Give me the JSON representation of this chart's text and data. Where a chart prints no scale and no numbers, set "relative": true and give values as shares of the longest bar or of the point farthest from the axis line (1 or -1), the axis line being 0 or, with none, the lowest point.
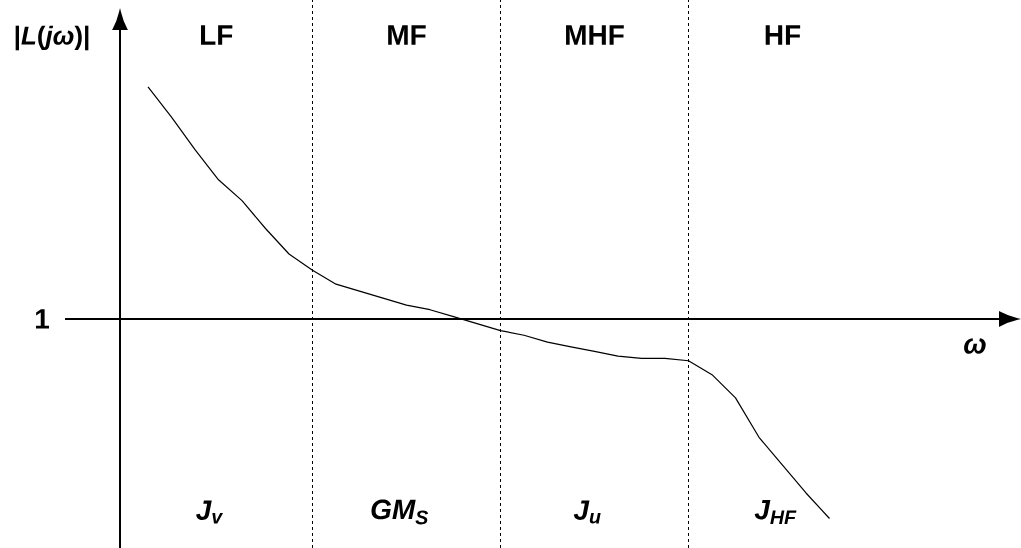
{
  "chart_data": {
    "type": "line",
    "relative": true,
    "ylabel": "|*L*(*jω*)|",
    "xlabel": "ω",
    "categories": [
      null,
      null,
      null,
      null,
      null,
      null,
      null,
      null,
      null,
      null,
      null,
      null,
      null,
      null,
      null,
      null,
      null,
      null,
      null,
      null,
      null,
      null,
      null,
      null,
      null,
      null,
      null,
      null,
      null,
      null
    ],
    "series": [
      {
        "color": "#000000",
        "values": [
          1.0,
          0.87,
          0.73,
          0.6,
          0.51,
          0.39,
          0.28,
          0.21,
          0.15,
          0.12,
          0.09,
          0.06,
          0.04,
          0.01,
          -0.02,
          -0.05,
          -0.07,
          -0.1,
          -0.12,
          -0.14,
          -0.16,
          -0.17,
          -0.17,
          -0.18,
          -0.24,
          -0.34,
          -0.51,
          -0.63,
          -0.75,
          -0.86
        ]
      }
    ],
    "marker": "none",
    "line_style": "solid",
    "grid": "x",
    "annotations": [
      "LF",
      "MF",
      "MHF",
      "HF",
      "J$_{v}$",
      "GM$_{S}$",
      "J$_{u}$",
      "J$_{HF}$",
      "1"
    ]
  }
}
